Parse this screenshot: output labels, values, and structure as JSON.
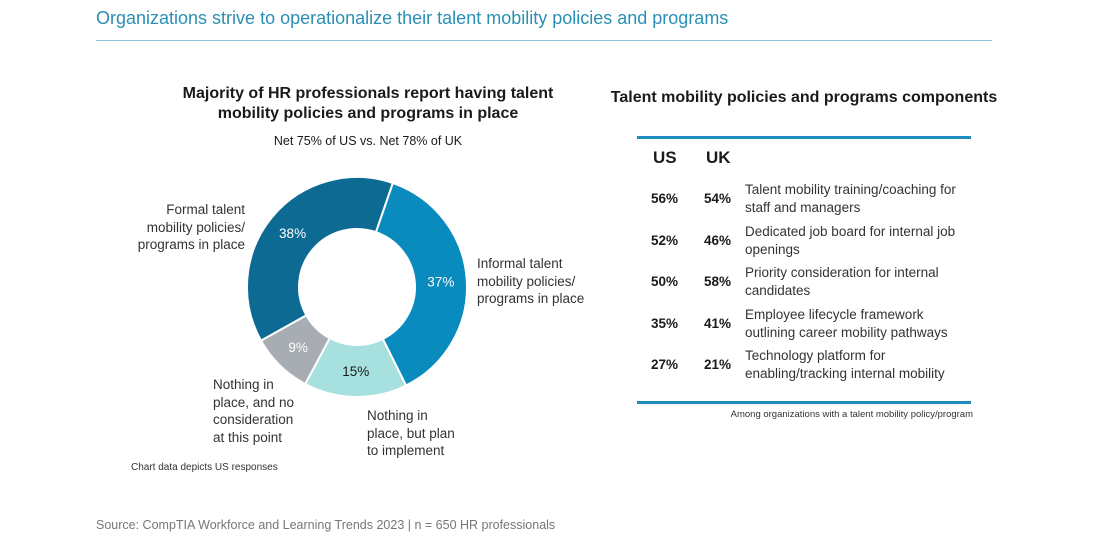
{
  "page_title": "Organizations strive to operationalize their talent mobility policies and programs",
  "source": "Source: CompTIA Workforce and Learning Trends 2023 | n = 650 HR professionals",
  "chart_data": [
    {
      "type": "pie",
      "title": "Majority of HR professionals report having talent mobility policies and programs in place",
      "subtitle": "Net 75% of US vs. Net 78% of UK",
      "note": "Chart data depicts US responses",
      "slices": [
        {
          "label": "Informal talent\nmobility policies/\nprograms in place",
          "value": 37,
          "display": "37%",
          "color": "#0a8bbd"
        },
        {
          "label": "Nothing in\nplace, but plan\nto implement",
          "value": 15,
          "display": "15%",
          "color": "#a6e0df"
        },
        {
          "label": "Nothing in\nplace, and no\nconsideration\nat this point",
          "value": 9,
          "display": "9%",
          "color": "#a7adb3"
        },
        {
          "label": "Formal talent\nmobility policies/\nprograms in place",
          "value": 38,
          "display": "38%",
          "color": "#0d6a93"
        }
      ]
    },
    {
      "type": "table",
      "title": "Talent mobility policies and programs components",
      "columns": [
        "US",
        "UK"
      ],
      "rows": [
        {
          "us": "56%",
          "uk": "54%",
          "label": "Talent mobility training/coaching for staff and managers"
        },
        {
          "us": "52%",
          "uk": "46%",
          "label": "Dedicated job board for internal job openings"
        },
        {
          "us": "50%",
          "uk": "58%",
          "label": "Priority consideration for internal candidates"
        },
        {
          "us": "35%",
          "uk": "41%",
          "label": "Employee lifecycle framework outlining career mobility pathways"
        },
        {
          "us": "27%",
          "uk": "21%",
          "label": "Technology platform for enabling/tracking internal mobility"
        }
      ],
      "note": "Among organizations with a talent mobility policy/program"
    }
  ]
}
